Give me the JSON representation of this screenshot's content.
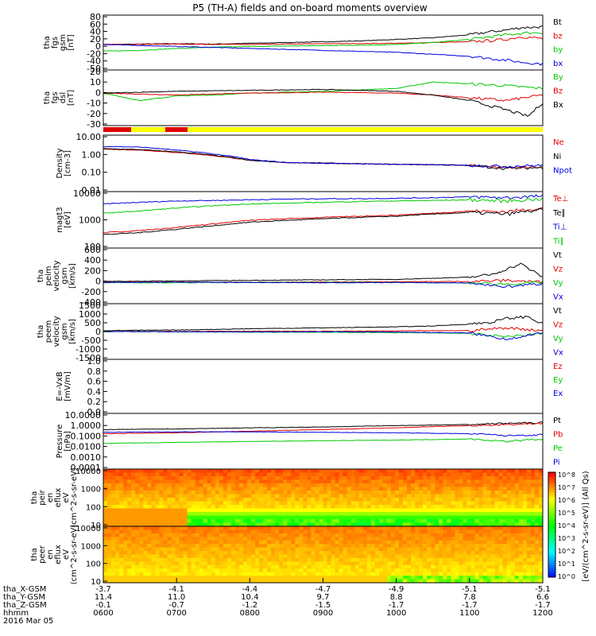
{
  "title": "P5 (TH-A) fields and on-board moments overview",
  "date_label": "2016 Mar 05",
  "colorbar": {
    "label": "[eV/(cm^2-s-sr-eV)] (All Qs)",
    "ticks": [
      "10^8",
      "10^7",
      "10^6",
      "10^5",
      "10^4",
      "10^3",
      "10^2",
      "10^1",
      "10^0"
    ]
  },
  "footer": {
    "rows": [
      {
        "label": "tha_X-GSM",
        "values": [
          "-3.7",
          "-4.1",
          "-4.4",
          "-4.7",
          "-4.9",
          "-5.1",
          "-5.1"
        ]
      },
      {
        "label": "tha_Y-GSM",
        "values": [
          "11.4",
          "11.0",
          "10.4",
          "9.7",
          "8.8",
          "7.8",
          "6.6"
        ]
      },
      {
        "label": "tha_Z-GSM",
        "values": [
          "-0.1",
          "-0.7",
          "-1.2",
          "-1.5",
          "-1.7",
          "-1.7",
          "-1.7"
        ]
      },
      {
        "label": "hhmm",
        "values": [
          "0600",
          "0700",
          "0800",
          "0900",
          "1000",
          "1100",
          "1200"
        ]
      }
    ]
  },
  "chart_data": [
    {
      "type": "line",
      "ylabel": [
        "tha",
        "fgs",
        "gsm",
        "[nT]"
      ],
      "yticks": [
        "80",
        "60",
        "40",
        "20",
        "0",
        "-20",
        "-40",
        "-50"
      ],
      "ylim": [
        -50,
        90
      ],
      "series": [
        {
          "name": "Bt",
          "color": "#000000",
          "x": [
            6,
            6.5,
            7,
            7.5,
            8,
            8.5,
            9,
            9.5,
            10,
            10.5,
            11,
            11.3,
            11.5,
            11.7,
            12
          ],
          "y": [
            15,
            16,
            17,
            16,
            18,
            20,
            22,
            24,
            28,
            32,
            40,
            48,
            52,
            58,
            60
          ]
        },
        {
          "name": "bz",
          "color": "#e00000",
          "x": [
            6,
            7,
            8,
            9,
            10,
            10.5,
            11,
            11.3,
            11.5,
            11.7,
            12
          ],
          "y": [
            15,
            16,
            15,
            17,
            18,
            20,
            22,
            25,
            28,
            35,
            30
          ]
        },
        {
          "name": "by",
          "color": "#00c800",
          "x": [
            6,
            6.5,
            7,
            7.5,
            8,
            9,
            10,
            10.5,
            11,
            11.5,
            11.8,
            12
          ],
          "y": [
            -2,
            0,
            5,
            8,
            10,
            12,
            15,
            20,
            28,
            40,
            45,
            45
          ]
        },
        {
          "name": "bx",
          "color": "#0000e0",
          "x": [
            6,
            7,
            8,
            9,
            10,
            10.5,
            11,
            11.5,
            11.7,
            12
          ],
          "y": [
            15,
            10,
            5,
            0,
            -5,
            -10,
            -15,
            -25,
            -30,
            -35
          ]
        }
      ]
    },
    {
      "type": "line",
      "ylabel": [
        "tha",
        "fgs",
        "dsl",
        "[nT]"
      ],
      "yticks": [
        "20",
        "10",
        "0",
        "-10",
        "-20",
        "-30"
      ],
      "ylim": [
        -35,
        25
      ],
      "series": [
        {
          "name": "By",
          "color": "#00c800",
          "x": [
            6,
            6.5,
            7,
            7.5,
            8,
            9,
            10,
            10.5,
            11,
            11.5,
            12
          ],
          "y": [
            0,
            -8,
            -3,
            -2,
            0,
            2,
            5,
            12,
            10,
            8,
            5
          ]
        },
        {
          "name": "Bz",
          "color": "#e00000",
          "x": [
            6,
            7,
            8,
            9,
            10,
            10.5,
            11,
            11.5,
            12
          ],
          "y": [
            0,
            -2,
            0,
            1,
            0,
            -2,
            -5,
            -8,
            -2
          ]
        },
        {
          "name": "Bx",
          "color": "#000000",
          "x": [
            6,
            7,
            8,
            9,
            10,
            10.5,
            11,
            11.5,
            11.8,
            12
          ],
          "y": [
            0,
            2,
            3,
            4,
            2,
            -2,
            -8,
            -18,
            -25,
            -10
          ]
        }
      ]
    },
    {
      "type": "line",
      "ylabel": [
        "Density",
        "[cm-3]"
      ],
      "yticks": [
        "10.00",
        "1.00",
        "0.10",
        "0.01"
      ],
      "ylim": [
        0.01,
        10
      ],
      "log": true,
      "series": [
        {
          "name": "Ne",
          "color": "#e00000",
          "x": [
            6,
            6.5,
            7,
            7.5,
            8,
            8.5,
            9,
            9.5,
            10,
            10.5,
            11,
            11.5,
            12
          ],
          "y": [
            1.8,
            1.6,
            1.2,
            0.8,
            0.45,
            0.35,
            0.32,
            0.3,
            0.28,
            0.27,
            0.25,
            0.18,
            0.2
          ]
        },
        {
          "name": "Ni",
          "color": "#000000",
          "x": [
            6,
            6.5,
            7,
            7.5,
            8,
            8.5,
            9,
            9.5,
            10,
            10.5,
            11,
            11.5,
            12
          ],
          "y": [
            1.9,
            1.7,
            1.3,
            0.85,
            0.45,
            0.35,
            0.33,
            0.3,
            0.28,
            0.27,
            0.24,
            0.17,
            0.19
          ]
        },
        {
          "name": "Npot",
          "color": "#0000e0",
          "x": [
            6,
            6.5,
            7,
            7.5,
            8,
            8.5,
            9,
            9.5,
            10,
            10.5,
            11,
            11.5,
            12
          ],
          "y": [
            2.5,
            2.3,
            1.6,
            1.0,
            0.5,
            0.35,
            0.32,
            0.3,
            0.28,
            0.27,
            0.25,
            0.22,
            0.25
          ]
        }
      ]
    },
    {
      "type": "line",
      "ylabel": [
        "magt3",
        "[eV]"
      ],
      "yticks": [
        "10000",
        "1000",
        "100"
      ],
      "ylim": [
        40,
        10000
      ],
      "log": true,
      "series": [
        {
          "name": "Te⊥",
          "color": "#e00000",
          "x": [
            6,
            6.5,
            7,
            7.5,
            8,
            8.5,
            9,
            9.5,
            10,
            10.5,
            11,
            11.5,
            12
          ],
          "y": [
            180,
            220,
            300,
            420,
            600,
            700,
            800,
            900,
            1000,
            1200,
            1500,
            1400,
            2000
          ]
        },
        {
          "name": "Te∥",
          "color": "#000000",
          "x": [
            6,
            6.5,
            7,
            7.5,
            8,
            8.5,
            9,
            9.5,
            10,
            10.5,
            11,
            11.5,
            12
          ],
          "y": [
            150,
            180,
            250,
            350,
            500,
            600,
            700,
            800,
            900,
            1100,
            1300,
            1100,
            1700
          ]
        },
        {
          "name": "Ti⊥",
          "color": "#0000e0",
          "x": [
            6,
            6.5,
            7,
            7.5,
            8,
            8.5,
            9,
            9.5,
            10,
            10.5,
            11,
            11.5,
            12
          ],
          "y": [
            3000,
            3500,
            4000,
            4200,
            4500,
            4800,
            5000,
            5000,
            5200,
            5500,
            6000,
            5500,
            6500
          ]
        },
        {
          "name": "Ti∥",
          "color": "#00c800",
          "x": [
            6,
            6.5,
            7,
            7.5,
            8,
            8.5,
            9,
            9.5,
            10,
            10.5,
            11,
            11.5,
            12
          ],
          "y": [
            1200,
            1500,
            2000,
            2500,
            3000,
            3200,
            3500,
            3800,
            4000,
            4200,
            4500,
            4000,
            5000
          ]
        }
      ]
    },
    {
      "type": "line",
      "ylabel": [
        "tha",
        "peim",
        "velocity",
        "gsm",
        "[km/s]"
      ],
      "yticks": [
        "600",
        "400",
        "200",
        "0",
        "-200",
        "-400"
      ],
      "ylim": [
        -400,
        650
      ],
      "series": [
        {
          "name": "Vt",
          "color": "#000000",
          "x": [
            6,
            7,
            8,
            9,
            10,
            10.5,
            11,
            11.3,
            11.5,
            11.7,
            12
          ],
          "y": [
            20,
            30,
            40,
            50,
            60,
            80,
            100,
            150,
            250,
            350,
            100
          ]
        },
        {
          "name": "Vz",
          "color": "#e00000",
          "x": [
            6,
            7,
            8,
            9,
            10,
            11,
            11.5,
            12
          ],
          "y": [
            5,
            10,
            5,
            10,
            15,
            20,
            40,
            10
          ]
        },
        {
          "name": "Vy",
          "color": "#00c800",
          "x": [
            6,
            7,
            8,
            9,
            10,
            11,
            11.5,
            12
          ],
          "y": [
            0,
            -5,
            0,
            5,
            0,
            -10,
            -30,
            0
          ]
        },
        {
          "name": "Vx",
          "color": "#0000e0",
          "x": [
            6,
            7,
            8,
            9,
            10,
            11,
            11.5,
            12
          ],
          "y": [
            0,
            5,
            0,
            -5,
            0,
            -10,
            -80,
            -20
          ]
        }
      ]
    },
    {
      "type": "line",
      "ylabel": [
        "tha",
        "peem",
        "velocity",
        "gsm",
        "[km/s]"
      ],
      "yticks": [
        "1500",
        "1000",
        "500",
        "0",
        "-500",
        "-1000",
        "-1500"
      ],
      "ylim": [
        -1500,
        1500
      ],
      "series": [
        {
          "name": "Vt",
          "color": "#000000",
          "x": [
            6,
            7,
            8,
            9,
            10,
            10.5,
            11,
            11.3,
            11.5,
            11.8,
            12
          ],
          "y": [
            50,
            80,
            150,
            200,
            250,
            300,
            400,
            500,
            700,
            800,
            400
          ]
        },
        {
          "name": "Vz",
          "color": "#e00000",
          "x": [
            6,
            7,
            8,
            9,
            10,
            11,
            11.5,
            12
          ],
          "y": [
            0,
            10,
            20,
            10,
            30,
            50,
            200,
            50
          ]
        },
        {
          "name": "Vy",
          "color": "#00c800",
          "x": [
            6,
            7,
            8,
            9,
            10,
            11,
            11.5,
            12
          ],
          "y": [
            0,
            -20,
            -30,
            -40,
            -60,
            -100,
            -300,
            -100
          ]
        },
        {
          "name": "Vx",
          "color": "#0000e0",
          "x": [
            6,
            7,
            8,
            9,
            10,
            11,
            11.5,
            12
          ],
          "y": [
            0,
            -10,
            -20,
            -10,
            -30,
            -80,
            -400,
            -100
          ]
        }
      ]
    },
    {
      "type": "line",
      "ylabel": [
        "E=-VxB",
        "[mV/m]"
      ],
      "yticks": [
        "1.0",
        "0.8",
        "0.6",
        "0.4",
        "0.2",
        "0.0"
      ],
      "ylim": [
        0,
        1
      ],
      "series": [
        {
          "name": "Ez",
          "color": "#e00000"
        },
        {
          "name": "Ey",
          "color": "#00c800"
        },
        {
          "name": "Ex",
          "color": "#0000e0"
        }
      ]
    },
    {
      "type": "line",
      "ylabel": [
        "Pressure",
        "[nPa]"
      ],
      "yticks": [
        "10.0000",
        "1.0000",
        "0.1000",
        "0.0100",
        "0.0010",
        "0.0001"
      ],
      "ylim": [
        0.0001,
        10
      ],
      "log": true,
      "series": [
        {
          "name": "Pt",
          "color": "#000000",
          "x": [
            6,
            7,
            8,
            9,
            10,
            11,
            11.5,
            12
          ],
          "y": [
            0.35,
            0.4,
            0.5,
            0.6,
            0.8,
            1.0,
            1.3,
            1.5
          ]
        },
        {
          "name": "Pb",
          "color": "#e00000",
          "x": [
            6,
            7,
            8,
            9,
            10,
            11,
            11.5,
            12
          ],
          "y": [
            0.15,
            0.18,
            0.25,
            0.35,
            0.5,
            0.8,
            1.0,
            1.3
          ]
        },
        {
          "name": "Pe",
          "color": "#00c800",
          "x": [
            6,
            7,
            8,
            9,
            10,
            11,
            11.5,
            12
          ],
          "y": [
            0.02,
            0.025,
            0.03,
            0.035,
            0.04,
            0.05,
            0.03,
            0.05
          ]
        },
        {
          "name": "Pi",
          "color": "#0000e0",
          "x": [
            6,
            7,
            8,
            9,
            10,
            11,
            11.5,
            12
          ],
          "y": [
            0.2,
            0.22,
            0.22,
            0.2,
            0.18,
            0.15,
            0.1,
            0.12
          ]
        }
      ]
    },
    {
      "type": "heatmap",
      "ylabel": [
        "tha",
        "peir",
        "en",
        "eflux",
        "eV",
        "(cm^2-s-sr-eV)"
      ],
      "yticks": [
        "10000",
        "1000",
        "100",
        "10"
      ],
      "log": true
    },
    {
      "type": "heatmap",
      "ylabel": [
        "tha",
        "peer",
        "en",
        "eflux",
        "eV",
        "(cm^2-s-sr-eV)"
      ],
      "yticks": [
        "10000",
        "1000",
        "100",
        "10"
      ],
      "log": true
    }
  ]
}
